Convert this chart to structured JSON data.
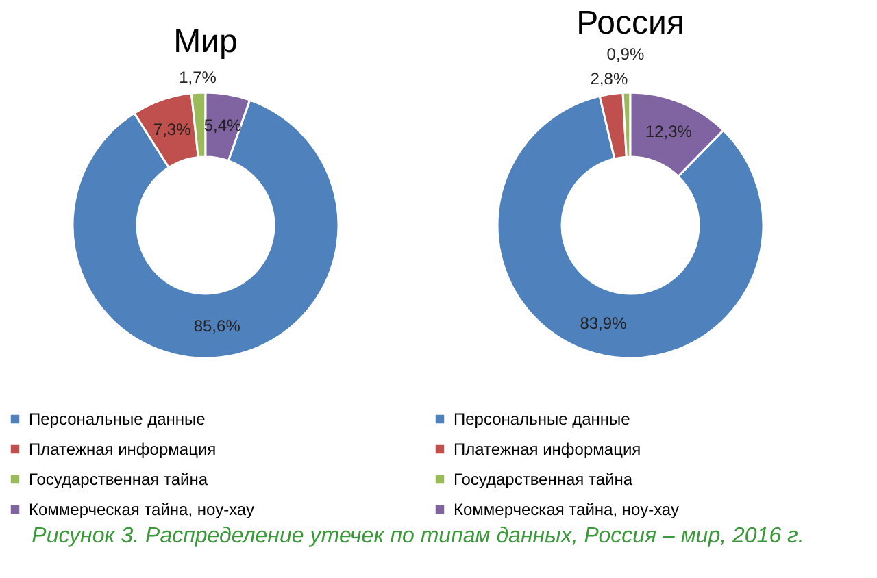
{
  "chart_data": [
    {
      "type": "donut",
      "title": "Мир",
      "categories": [
        "Персональные данные",
        "Платежная информация",
        "Государственная тайна",
        "Коммерческая тайна, ноу-хау"
      ],
      "values": [
        85.6,
        7.3,
        1.7,
        5.4
      ],
      "value_labels": [
        "85,6%",
        "7,3%",
        "1,7%",
        "5,4%"
      ],
      "colors": [
        "#4f81bd",
        "#c0504d",
        "#9bbb59",
        "#8064a2"
      ],
      "legend": "bottom",
      "annotations": [
        "Рисунок 3. Распределение утечек по типам данных, Россия – мир, 2016 г."
      ]
    },
    {
      "type": "donut",
      "title": "Россия",
      "categories": [
        "Персональные данные",
        "Платежная информация",
        "Государственная тайна",
        "Коммерческая тайна, ноу-хау"
      ],
      "values": [
        83.9,
        2.8,
        0.9,
        12.3
      ],
      "value_labels": [
        "83,9%",
        "2,8%",
        "0,9%",
        "12,3%"
      ],
      "colors": [
        "#4f81bd",
        "#c0504d",
        "#9bbb59",
        "#8064a2"
      ],
      "legend": "bottom"
    }
  ]
}
